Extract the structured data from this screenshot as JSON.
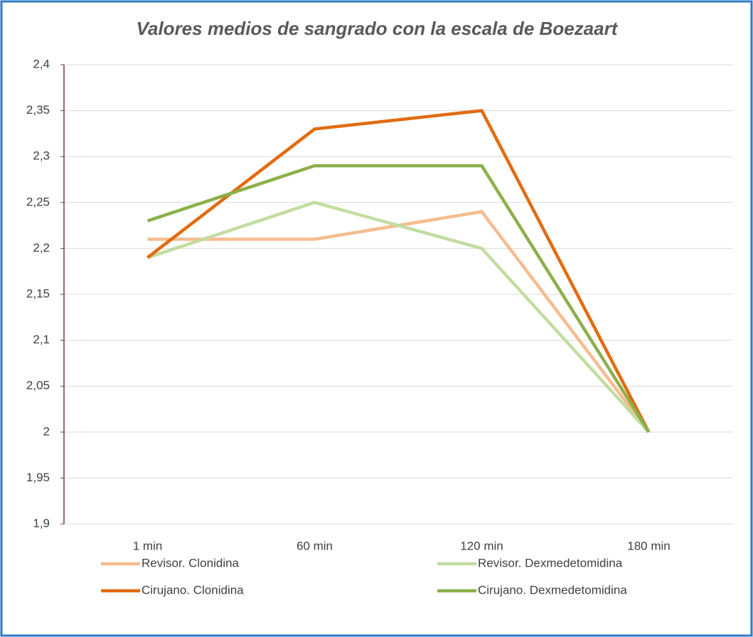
{
  "chart_data": {
    "type": "line",
    "title": "Valores medios de sangrado con la escala de Boezaart",
    "categories": [
      "1 min",
      "60 min",
      "120 min",
      "180 min"
    ],
    "series": [
      {
        "name": "Revisor. Clonidina",
        "color": "#f6bc8f",
        "values": [
          2.21,
          2.21,
          2.24,
          2.0
        ]
      },
      {
        "name": "Revisor. Dexmedetomidina",
        "color": "#c3dca0",
        "values": [
          2.19,
          2.25,
          2.2,
          2.0
        ]
      },
      {
        "name": "Cirujano. Clonidina",
        "color": "#e26b10",
        "values": [
          2.19,
          2.33,
          2.35,
          2.0
        ]
      },
      {
        "name": "Cirujano. Dexmedetomidina",
        "color": "#8cb04a",
        "values": [
          2.23,
          2.29,
          2.29,
          2.0
        ]
      }
    ],
    "ylim": [
      1.9,
      2.4
    ],
    "yticks": [
      {
        "value": 1.9,
        "label": "1,9"
      },
      {
        "value": 1.95,
        "label": "1,95"
      },
      2,
      {
        "value": 2.05,
        "label": "2,05"
      },
      {
        "value": 2.1,
        "label": "2,1"
      },
      {
        "value": 2.15,
        "label": "2,15"
      },
      {
        "value": 2.2,
        "label": "2,2"
      },
      {
        "value": 2.25,
        "label": "2,25"
      },
      {
        "value": 2.3,
        "label": "2,3"
      },
      {
        "value": 2.35,
        "label": "2,35"
      },
      {
        "value": 2.4,
        "label": "2,4"
      }
    ],
    "grid": true
  }
}
